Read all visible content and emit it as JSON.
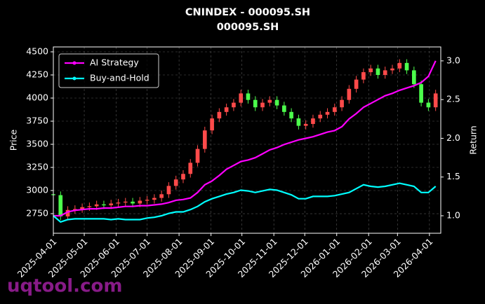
{
  "chart_data": {
    "type": "candlestick",
    "title": "CNINDEX - 000095.SH",
    "subtitle": "000095.SH",
    "ylabel": "Price",
    "y2label": "Return",
    "watermark": "uqtool.com",
    "legend": "upper left",
    "grid": true,
    "up_color": "#ff4a4a",
    "down_color": "#4cff4c",
    "xlim": [
      "2025-04-01",
      "2026-04-12"
    ],
    "xticks": [
      "2025-04-01",
      "2025-05-01",
      "2025-06-01",
      "2025-07-01",
      "2025-08-01",
      "2025-09-01",
      "2025-10-01",
      "2025-11-01",
      "2025-12-01",
      "2026-01-01",
      "2026-02-01",
      "2026-03-01",
      "2026-04-01"
    ],
    "ylim": [
      2538,
      4553
    ],
    "yticks": [
      2750,
      3000,
      3250,
      3500,
      3750,
      4000,
      4250,
      4500
    ],
    "y2lim": [
      0.774,
      3.18
    ],
    "y2ticks": [
      {
        "value": 1,
        "label": "1.0"
      },
      {
        "value": 1.5,
        "label": "1.5"
      },
      {
        "value": 2,
        "label": "2.0"
      },
      {
        "value": 2.5,
        "label": "2.5"
      },
      {
        "value": 3,
        "label": "3.0"
      }
    ],
    "x": [
      "2025-04-01",
      "2025-04-08",
      "2025-04-15",
      "2025-04-22",
      "2025-04-29",
      "2025-05-06",
      "2025-05-13",
      "2025-05-20",
      "2025-05-27",
      "2025-06-03",
      "2025-06-10",
      "2025-06-17",
      "2025-06-24",
      "2025-07-01",
      "2025-07-08",
      "2025-07-15",
      "2025-07-22",
      "2025-07-29",
      "2025-08-05",
      "2025-08-12",
      "2025-08-19",
      "2025-08-26",
      "2025-09-02",
      "2025-09-09",
      "2025-09-16",
      "2025-09-23",
      "2025-09-30",
      "2025-10-07",
      "2025-10-14",
      "2025-10-21",
      "2025-10-28",
      "2025-11-04",
      "2025-11-11",
      "2025-11-18",
      "2025-11-25",
      "2025-12-02",
      "2025-12-09",
      "2025-12-16",
      "2025-12-23",
      "2025-12-30",
      "2026-01-06",
      "2026-01-13",
      "2026-01-20",
      "2026-01-27",
      "2026-02-03",
      "2026-02-10",
      "2026-02-17",
      "2026-02-24",
      "2026-03-03",
      "2026-03-10",
      "2026-03-17",
      "2026-03-24",
      "2026-03-31",
      "2026-04-07"
    ],
    "open": [
      2960,
      2950,
      2720,
      2790,
      2800,
      2820,
      2830,
      2850,
      2840,
      2860,
      2870,
      2880,
      2860,
      2890,
      2900,
      2920,
      2960,
      3050,
      3120,
      3180,
      3300,
      3450,
      3650,
      3780,
      3850,
      3900,
      3950,
      4050,
      3980,
      3900,
      3950,
      3980,
      3920,
      3850,
      3780,
      3700,
      3720,
      3780,
      3820,
      3850,
      3900,
      3980,
      4100,
      4200,
      4280,
      4320,
      4250,
      4300,
      4320,
      4380,
      4300,
      4150,
      3950,
      3900
    ],
    "high": [
      3000,
      2990,
      2830,
      2840,
      2860,
      2870,
      2890,
      2890,
      2900,
      2910,
      2920,
      2920,
      2930,
      2940,
      2960,
      3000,
      3090,
      3160,
      3220,
      3340,
      3490,
      3690,
      3820,
      3890,
      3940,
      3990,
      4090,
      4090,
      4020,
      3990,
      4020,
      4020,
      3960,
      3890,
      3820,
      3760,
      3820,
      3860,
      3890,
      3940,
      4020,
      4140,
      4240,
      4320,
      4360,
      4360,
      4340,
      4360,
      4420,
      4420,
      4340,
      4190,
      3990,
      4090
    ],
    "low": [
      2910,
      2680,
      2680,
      2750,
      2760,
      2780,
      2790,
      2800,
      2800,
      2820,
      2830,
      2820,
      2820,
      2850,
      2860,
      2880,
      2920,
      3010,
      3080,
      3140,
      3260,
      3410,
      3610,
      3740,
      3810,
      3860,
      3910,
      3940,
      3860,
      3860,
      3910,
      3880,
      3810,
      3740,
      3660,
      3660,
      3680,
      3740,
      3780,
      3810,
      3860,
      3940,
      4060,
      4160,
      4240,
      4210,
      4210,
      4260,
      4280,
      4260,
      4110,
      3910,
      3860,
      3860
    ],
    "close": [
      2950,
      2720,
      2790,
      2800,
      2820,
      2830,
      2850,
      2840,
      2860,
      2870,
      2880,
      2860,
      2890,
      2900,
      2920,
      2960,
      3050,
      3120,
      3180,
      3300,
      3450,
      3650,
      3780,
      3850,
      3900,
      3950,
      4050,
      3980,
      3900,
      3950,
      3980,
      3920,
      3850,
      3780,
      3700,
      3720,
      3780,
      3820,
      3850,
      3900,
      3980,
      4100,
      4200,
      4280,
      4320,
      4250,
      4300,
      4320,
      4380,
      4300,
      4150,
      3950,
      3900,
      4050
    ],
    "series": [
      {
        "name": "AI Strategy",
        "color": "#ff00ff",
        "axis": "y2",
        "values": [
          1.0,
          1.0,
          1.05,
          1.07,
          1.08,
          1.09,
          1.09,
          1.1,
          1.1,
          1.11,
          1.12,
          1.12,
          1.13,
          1.13,
          1.14,
          1.15,
          1.17,
          1.2,
          1.21,
          1.23,
          1.3,
          1.4,
          1.45,
          1.52,
          1.6,
          1.65,
          1.7,
          1.72,
          1.75,
          1.8,
          1.85,
          1.88,
          1.92,
          1.95,
          1.98,
          2.0,
          2.02,
          2.05,
          2.08,
          2.1,
          2.15,
          2.25,
          2.32,
          2.4,
          2.45,
          2.5,
          2.55,
          2.58,
          2.62,
          2.65,
          2.68,
          2.72,
          2.8,
          3.0
        ]
      },
      {
        "name": "Buy-and-Hold",
        "color": "#00ffff",
        "axis": "y2",
        "values": [
          1.0,
          0.92,
          0.95,
          0.96,
          0.96,
          0.96,
          0.96,
          0.96,
          0.95,
          0.96,
          0.95,
          0.95,
          0.95,
          0.97,
          0.98,
          1.0,
          1.03,
          1.05,
          1.05,
          1.08,
          1.12,
          1.18,
          1.22,
          1.25,
          1.28,
          1.3,
          1.33,
          1.32,
          1.3,
          1.32,
          1.34,
          1.33,
          1.3,
          1.27,
          1.22,
          1.22,
          1.25,
          1.25,
          1.25,
          1.26,
          1.28,
          1.3,
          1.35,
          1.4,
          1.38,
          1.37,
          1.38,
          1.4,
          1.42,
          1.4,
          1.38,
          1.3,
          1.3,
          1.38
        ]
      }
    ]
  }
}
